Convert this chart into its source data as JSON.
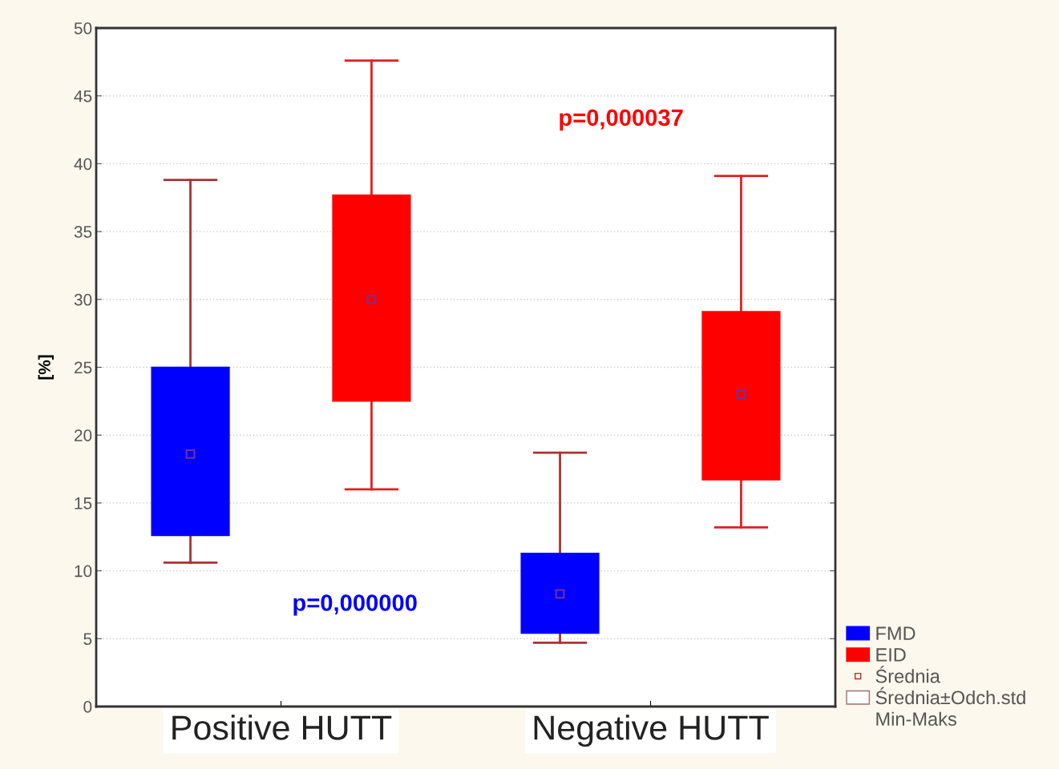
{
  "chart_data": {
    "type": "box",
    "ylabel": "[%]",
    "categories": [
      "Positive HUTT",
      "Negative HUTT"
    ],
    "series": [
      {
        "name": "FMD",
        "color": "#0000ff",
        "boxes": [
          {
            "low": 10.6,
            "q1": 12.6,
            "median": 18.6,
            "q3": 25.0,
            "high": 38.8,
            "mean": 18.6
          },
          {
            "low": 4.7,
            "q1": 5.4,
            "median": 8.3,
            "q3": 11.3,
            "high": 18.7,
            "mean": 8.3
          }
        ]
      },
      {
        "name": "EID",
        "color": "#ff0000",
        "boxes": [
          {
            "low": 16.0,
            "q1": 22.5,
            "median": 30.0,
            "q3": 37.7,
            "high": 47.6,
            "mean": 30.0
          },
          {
            "low": 13.2,
            "q1": 16.7,
            "median": 23.0,
            "q3": 29.1,
            "high": 39.1,
            "mean": 23.0
          }
        ]
      }
    ],
    "annotations": [
      "p=0,000000",
      "p=0,000037",
      "Średnia",
      "Średnia±Odch.std",
      "Min-Maks"
    ],
    "ylim": [
      0,
      50
    ],
    "yticks": [
      0,
      5,
      10,
      15,
      20,
      25,
      30,
      35,
      40,
      45,
      50
    ],
    "grid": "y",
    "legend": "bottom right"
  }
}
